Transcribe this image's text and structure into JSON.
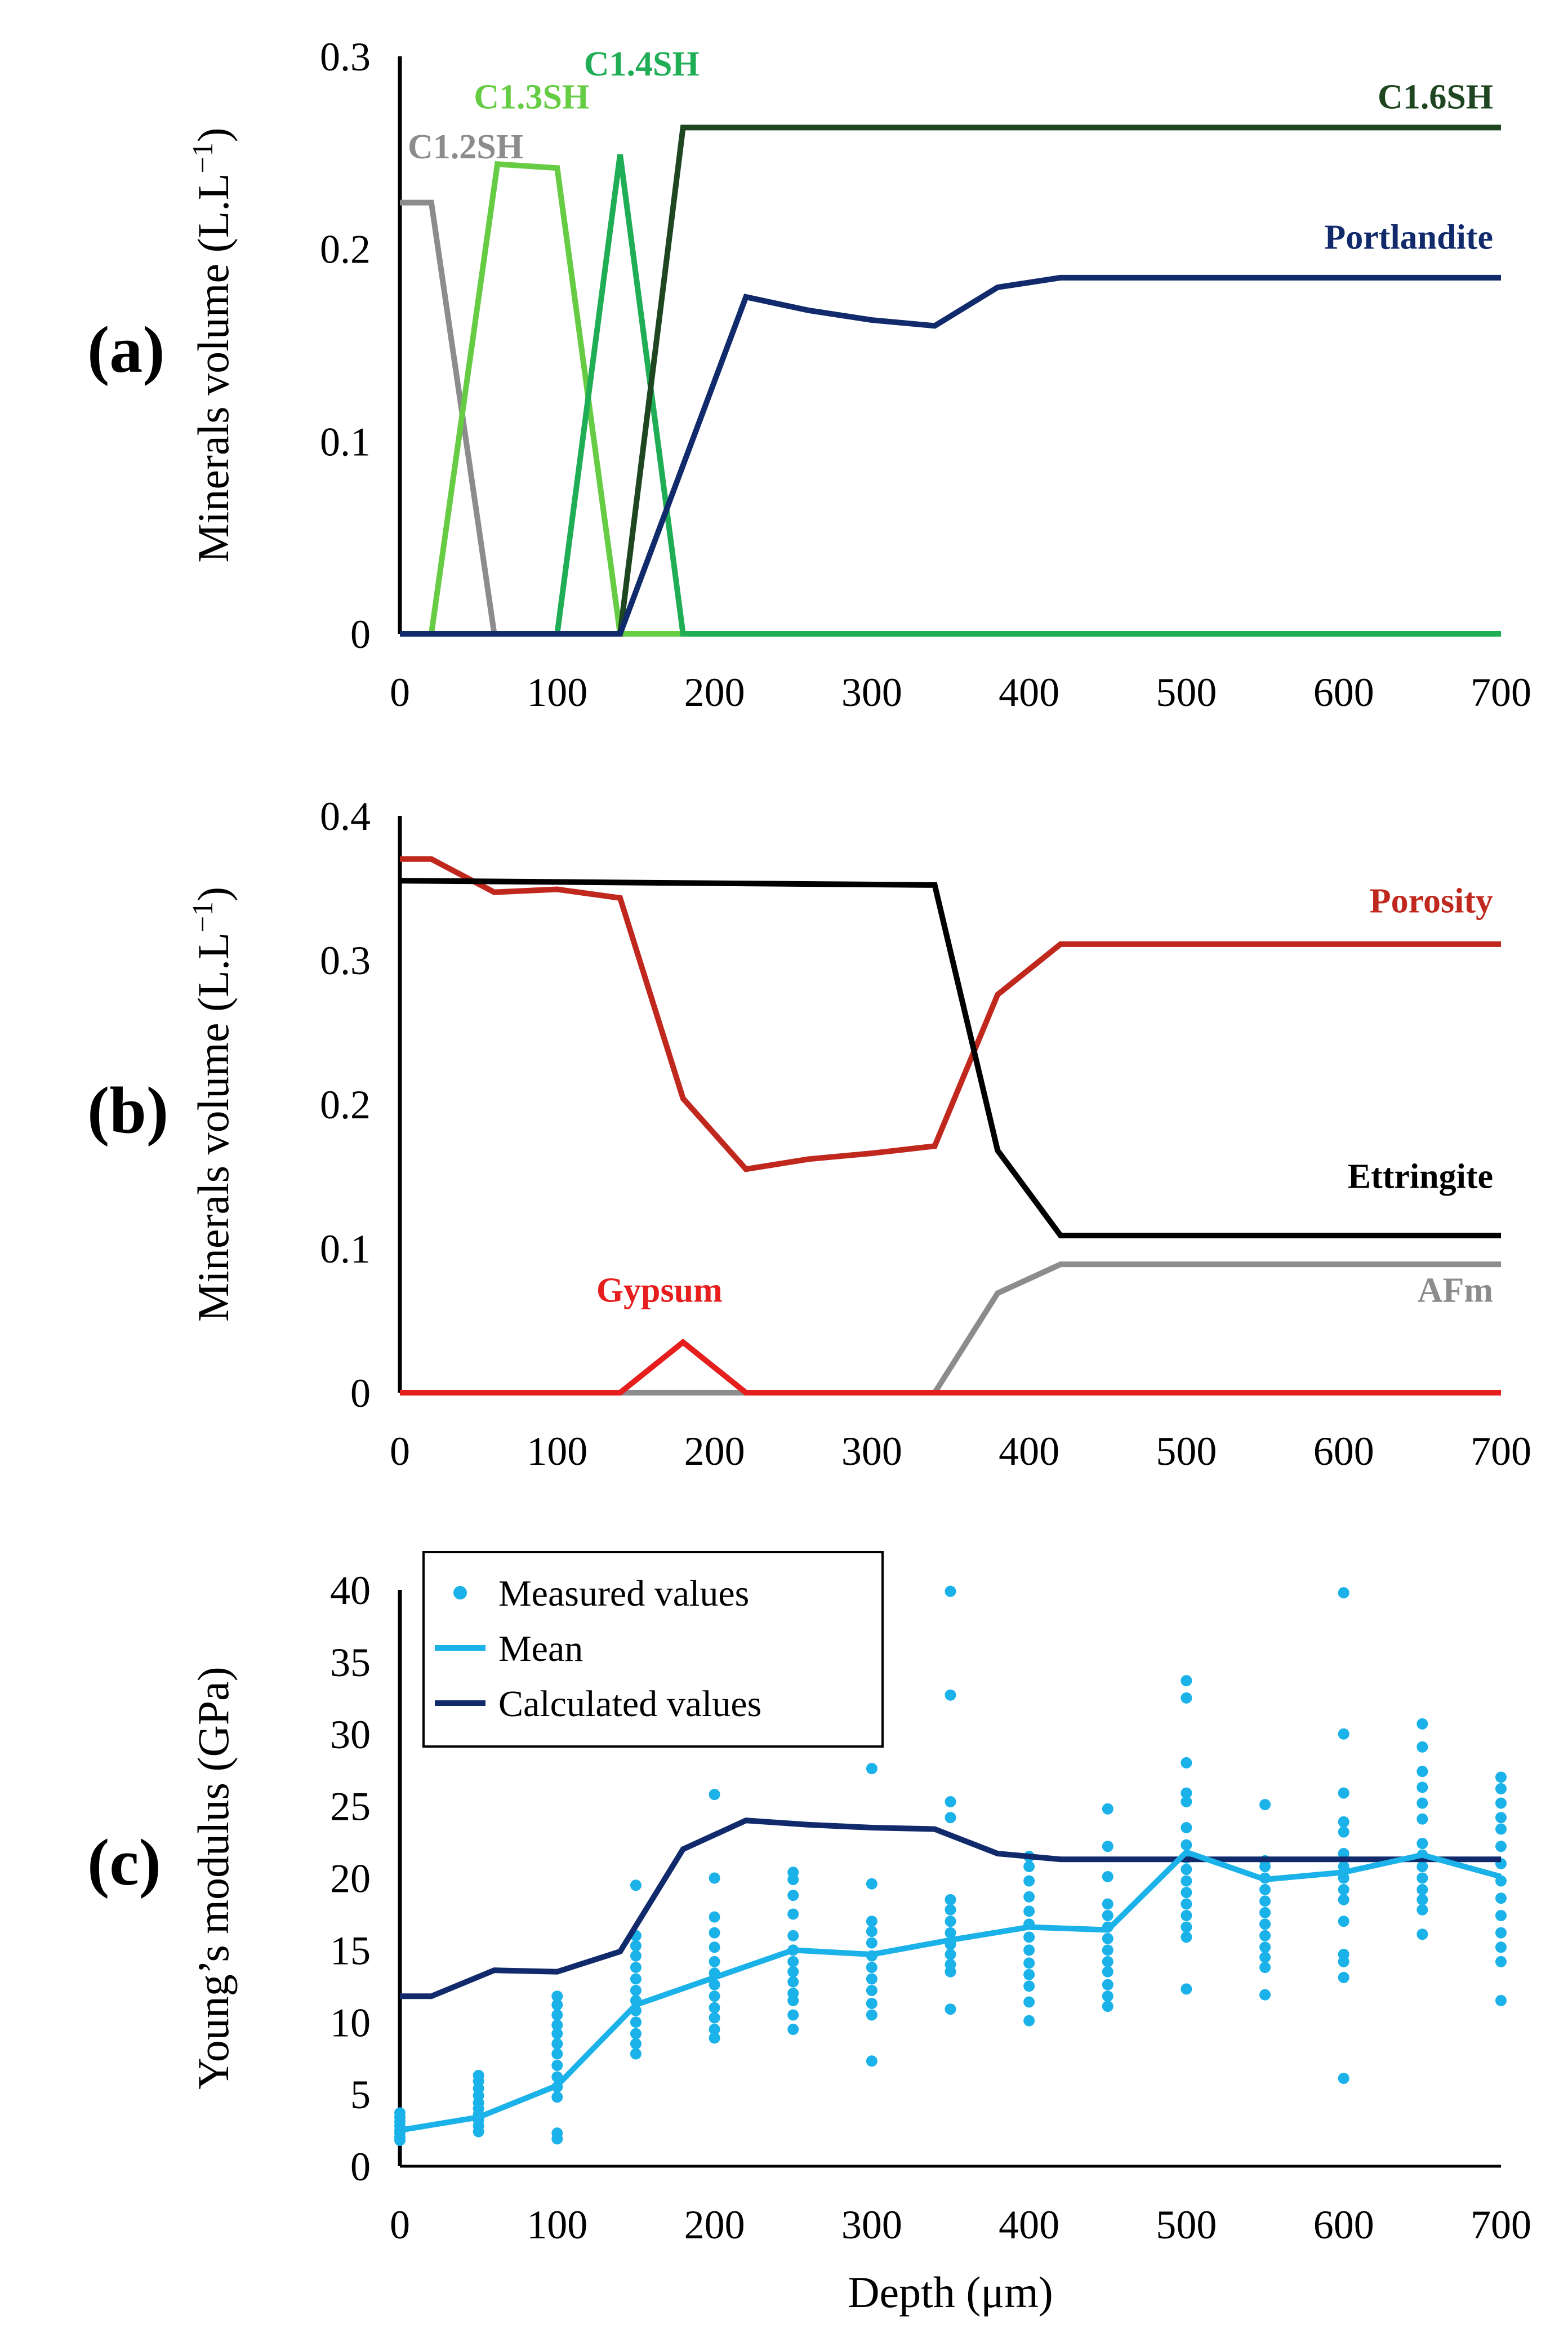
{
  "chart_data": [
    {
      "type": "line",
      "panel_label": "(a)",
      "ylabel": "Minerals volume (L.L",
      "ylabel_sup": "−1",
      "ylabel_close": ")",
      "xlabel": "",
      "xlim": [
        0,
        700
      ],
      "ylim": [
        0,
        0.3
      ],
      "xticks": [
        0,
        100,
        200,
        300,
        400,
        500,
        600,
        700
      ],
      "yticks": [
        0,
        0.1,
        0.2,
        0.3
      ],
      "xtick_labels": [
        "0",
        "100",
        "200",
        "300",
        "400",
        "500",
        "600",
        "700"
      ],
      "ytick_labels": [
        "0",
        "0.1",
        "0.2",
        "0.3"
      ],
      "series": [
        {
          "name": "C1.2SH",
          "color": "#8c8c8c",
          "label_at": [
            5,
            0.247
          ],
          "points": [
            [
              0,
              0.224
            ],
            [
              20,
              0.224
            ],
            [
              60,
              0
            ],
            [
              700,
              0
            ]
          ]
        },
        {
          "name": "C1.3SH",
          "color": "#66cc44",
          "label_at": [
            47,
            0.273
          ],
          "points": [
            [
              0,
              0
            ],
            [
              20,
              0
            ],
            [
              62,
              0.244
            ],
            [
              100,
              0.242
            ],
            [
              140,
              0
            ],
            [
              700,
              0
            ]
          ]
        },
        {
          "name": "C1.4SH",
          "color": "#1fae55",
          "label_at": [
            117,
            0.29
          ],
          "points": [
            [
              0,
              0
            ],
            [
              100,
              0
            ],
            [
              140,
              0.249
            ],
            [
              180,
              0
            ],
            [
              700,
              0
            ]
          ]
        },
        {
          "name": "C1.6SH",
          "color": "#1e4620",
          "label_at": [
            695,
            0.273
          ],
          "anchor": "end",
          "points": [
            [
              0,
              0
            ],
            [
              140,
              0
            ],
            [
              180,
              0.263
            ],
            [
              700,
              0.263
            ]
          ]
        },
        {
          "name": "Portlandite",
          "color": "#102a6b",
          "label_at": [
            695,
            0.2
          ],
          "anchor": "end",
          "points": [
            [
              0,
              0
            ],
            [
              140,
              0
            ],
            [
              220,
              0.175
            ],
            [
              260,
              0.168
            ],
            [
              300,
              0.163
            ],
            [
              340,
              0.16
            ],
            [
              380,
              0.18
            ],
            [
              420,
              0.185
            ],
            [
              700,
              0.185
            ]
          ]
        }
      ]
    },
    {
      "type": "line",
      "panel_label": "(b)",
      "ylabel": "Minerals volume (L.L",
      "ylabel_sup": "−1",
      "ylabel_close": ")",
      "xlabel": "",
      "xlim": [
        0,
        700
      ],
      "ylim": [
        0,
        0.4
      ],
      "xticks": [
        0,
        100,
        200,
        300,
        400,
        500,
        600,
        700
      ],
      "yticks": [
        0,
        0.1,
        0.2,
        0.3,
        0.4
      ],
      "xtick_labels": [
        "0",
        "100",
        "200",
        "300",
        "400",
        "500",
        "600",
        "700"
      ],
      "ytick_labels": [
        "0",
        "0.1",
        "0.2",
        "0.3",
        "0.4"
      ],
      "series": [
        {
          "name": "Porosity",
          "color": "#c0281e",
          "label_at": [
            695,
            0.333
          ],
          "anchor": "end",
          "points": [
            [
              0,
              0.37
            ],
            [
              20,
              0.37
            ],
            [
              60,
              0.347
            ],
            [
              100,
              0.349
            ],
            [
              140,
              0.343
            ],
            [
              180,
              0.204
            ],
            [
              220,
              0.155
            ],
            [
              260,
              0.162
            ],
            [
              300,
              0.166
            ],
            [
              340,
              0.171
            ],
            [
              380,
              0.276
            ],
            [
              420,
              0.311
            ],
            [
              700,
              0.311
            ]
          ]
        },
        {
          "name": "Ettringite",
          "color": "#000000",
          "label_at": [
            695,
            0.142
          ],
          "anchor": "end",
          "points": [
            [
              0,
              0.355
            ],
            [
              340,
              0.352
            ],
            [
              380,
              0.168
            ],
            [
              420,
              0.109
            ],
            [
              700,
              0.109
            ]
          ]
        },
        {
          "name": "AFm",
          "color": "#8c8c8c",
          "label_at": [
            695,
            0.063
          ],
          "anchor": "end",
          "points": [
            [
              0,
              0
            ],
            [
              340,
              0
            ],
            [
              380,
              0.069
            ],
            [
              420,
              0.089
            ],
            [
              700,
              0.089
            ]
          ]
        },
        {
          "name": "Gypsum",
          "color": "#e61e1e",
          "label_at": [
            165,
            0.063
          ],
          "anchor": "middle",
          "points": [
            [
              0,
              0
            ],
            [
              140,
              0
            ],
            [
              180,
              0.035
            ],
            [
              220,
              0
            ],
            [
              700,
              0
            ]
          ]
        }
      ]
    },
    {
      "type": "scatter",
      "panel_label": "(c)",
      "ylabel": "Young’s modulus  (GPa)",
      "xlabel": "Depth (μm)",
      "xlim": [
        0,
        700
      ],
      "ylim": [
        0,
        40
      ],
      "xticks": [
        0,
        100,
        200,
        300,
        400,
        500,
        600,
        700
      ],
      "yticks": [
        0,
        5,
        10,
        15,
        20,
        25,
        30,
        35,
        40
      ],
      "xtick_labels": [
        "0",
        "100",
        "200",
        "300",
        "400",
        "500",
        "600",
        "700"
      ],
      "ytick_labels": [
        "0",
        "5",
        "10",
        "15",
        "20",
        "25",
        "30",
        "35",
        "40"
      ],
      "legend": [
        "Measured values",
        "Mean",
        "Calculated values"
      ],
      "legend_position": "top-left",
      "measured_color": "#1ab2e8",
      "calculated_color": "#102a6b",
      "measured": [
        {
          "x": 0,
          "values": [
            1.8,
            2.0,
            2.3,
            2.5,
            2.8,
            3.1,
            3.4,
            3.7
          ]
        },
        {
          "x": 50,
          "values": [
            2.4,
            2.8,
            3.2,
            3.6,
            4.0,
            4.4,
            4.9,
            5.4,
            5.9,
            6.3
          ]
        },
        {
          "x": 100,
          "values": [
            1.9,
            2.3,
            4.8,
            5.5,
            6.2,
            7.0,
            7.8,
            8.5,
            9.2,
            9.8,
            10.5,
            11.2,
            11.8
          ]
        },
        {
          "x": 150,
          "values": [
            7.8,
            8.5,
            9.2,
            10.0,
            10.8,
            11.5,
            12.2,
            13.0,
            13.8,
            14.6,
            15.3,
            16.0,
            19.5
          ]
        },
        {
          "x": 200,
          "values": [
            8.9,
            9.5,
            10.3,
            11.0,
            11.8,
            12.6,
            13.4,
            14.2,
            15.2,
            16.2,
            17.3,
            20.0,
            25.8
          ]
        },
        {
          "x": 250,
          "values": [
            9.5,
            10.5,
            11.5,
            12.0,
            12.8,
            13.5,
            14.2,
            15.0,
            16.0,
            17.5,
            18.8,
            19.9,
            20.4
          ]
        },
        {
          "x": 300,
          "values": [
            7.3,
            10.5,
            11.3,
            12.2,
            13.0,
            13.8,
            14.6,
            15.5,
            16.3,
            17.0,
            19.6,
            27.6
          ]
        },
        {
          "x": 350,
          "values": [
            10.9,
            13.5,
            14.0,
            14.7,
            15.4,
            16.2,
            17.0,
            17.8,
            18.5,
            24.2,
            25.3,
            32.7,
            39.9
          ]
        },
        {
          "x": 400,
          "values": [
            10.1,
            11.4,
            12.5,
            13.3,
            14.1,
            15.0,
            15.9,
            16.8,
            17.7,
            18.7,
            19.8,
            20.8,
            21.5
          ]
        },
        {
          "x": 450,
          "values": [
            11.1,
            11.8,
            12.6,
            13.5,
            14.2,
            15.0,
            15.8,
            16.6,
            17.4,
            18.2,
            20.1,
            22.2,
            24.8
          ]
        },
        {
          "x": 500,
          "values": [
            12.3,
            15.9,
            16.6,
            17.4,
            18.2,
            19.0,
            19.8,
            20.6,
            21.4,
            22.3,
            23.5,
            25.3,
            25.9,
            28.0,
            32.5,
            33.7
          ]
        },
        {
          "x": 550,
          "values": [
            11.9,
            13.8,
            14.5,
            15.2,
            16.0,
            16.8,
            17.6,
            18.4,
            19.2,
            20.0,
            20.8,
            21.2,
            25.1
          ]
        },
        {
          "x": 600,
          "values": [
            6.1,
            13.1,
            14.2,
            14.7,
            17.0,
            18.5,
            19.2,
            20.0,
            20.8,
            21.7,
            23.2,
            23.9,
            25.9,
            30.0,
            39.8
          ]
        },
        {
          "x": 650,
          "values": [
            16.1,
            17.8,
            18.5,
            19.2,
            20.0,
            20.8,
            21.6,
            22.4,
            24.1,
            25.2,
            26.3,
            27.4,
            29.1,
            30.7
          ]
        },
        {
          "x": 700,
          "values": [
            11.5,
            14.2,
            15.2,
            16.2,
            17.4,
            18.6,
            19.8,
            21.0,
            22.2,
            23.4,
            24.2,
            25.2,
            26.2,
            27.0
          ]
        }
      ],
      "mean": {
        "name": "Mean",
        "color": "#1ab2e8",
        "points": [
          [
            0,
            2.5
          ],
          [
            50,
            3.4
          ],
          [
            100,
            5.6
          ],
          [
            150,
            11.2
          ],
          [
            200,
            13.1
          ],
          [
            250,
            15.0
          ],
          [
            300,
            14.7
          ],
          [
            350,
            15.7
          ],
          [
            400,
            16.6
          ],
          [
            450,
            16.4
          ],
          [
            500,
            21.8
          ],
          [
            550,
            19.9
          ],
          [
            600,
            20.4
          ],
          [
            650,
            21.6
          ],
          [
            700,
            20.1
          ]
        ]
      },
      "calculated": {
        "name": "Calculated values",
        "color": "#102a6b",
        "points": [
          [
            0,
            11.8
          ],
          [
            20,
            11.8
          ],
          [
            60,
            13.6
          ],
          [
            100,
            13.5
          ],
          [
            140,
            14.9
          ],
          [
            180,
            22.0
          ],
          [
            220,
            24.0
          ],
          [
            260,
            23.7
          ],
          [
            300,
            23.5
          ],
          [
            340,
            23.4
          ],
          [
            380,
            21.7
          ],
          [
            420,
            21.3
          ],
          [
            700,
            21.3
          ]
        ]
      }
    }
  ]
}
